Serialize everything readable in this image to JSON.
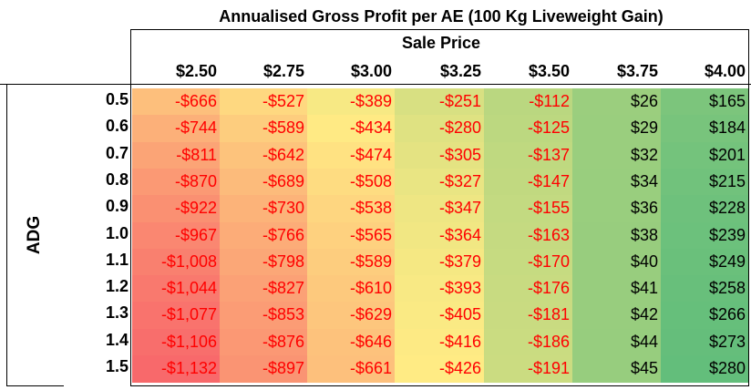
{
  "chart_data": {
    "type": "heatmap",
    "title": "Annualised Gross Profit per AE (100 Kg Liveweight Gain)",
    "x_header": "Sale Price",
    "ylabel": "ADG",
    "columns": [
      "$2.50",
      "$2.75",
      "$3.00",
      "$3.25",
      "$3.50",
      "$3.75",
      "$4.00"
    ],
    "row_labels": [
      "0.5",
      "0.6",
      "0.7",
      "0.8",
      "0.9",
      "1.0",
      "1.1",
      "1.2",
      "1.3",
      "1.4",
      "1.5"
    ],
    "values": [
      [
        -666,
        -527,
        -389,
        -251,
        -112,
        26,
        165
      ],
      [
        -744,
        -589,
        -434,
        -280,
        -125,
        29,
        184
      ],
      [
        -811,
        -642,
        -474,
        -305,
        -137,
        32,
        201
      ],
      [
        -870,
        -689,
        -508,
        -327,
        -147,
        34,
        215
      ],
      [
        -922,
        -730,
        -538,
        -347,
        -155,
        36,
        228
      ],
      [
        -967,
        -766,
        -565,
        -364,
        -163,
        38,
        239
      ],
      [
        -1008,
        -798,
        -589,
        -379,
        -170,
        40,
        249
      ],
      [
        -1044,
        -827,
        -610,
        -393,
        -176,
        41,
        258
      ],
      [
        -1077,
        -853,
        -629,
        -405,
        -181,
        42,
        266
      ],
      [
        -1106,
        -876,
        -646,
        -416,
        -186,
        44,
        273
      ],
      [
        -1132,
        -897,
        -661,
        -426,
        -191,
        45,
        280
      ]
    ],
    "color_scale": {
      "low": "#f8696b",
      "mid": "#ffeb84",
      "high": "#63be7b"
    },
    "value_colors": {
      "negative": "#ff0000",
      "positive": "#000000"
    }
  }
}
